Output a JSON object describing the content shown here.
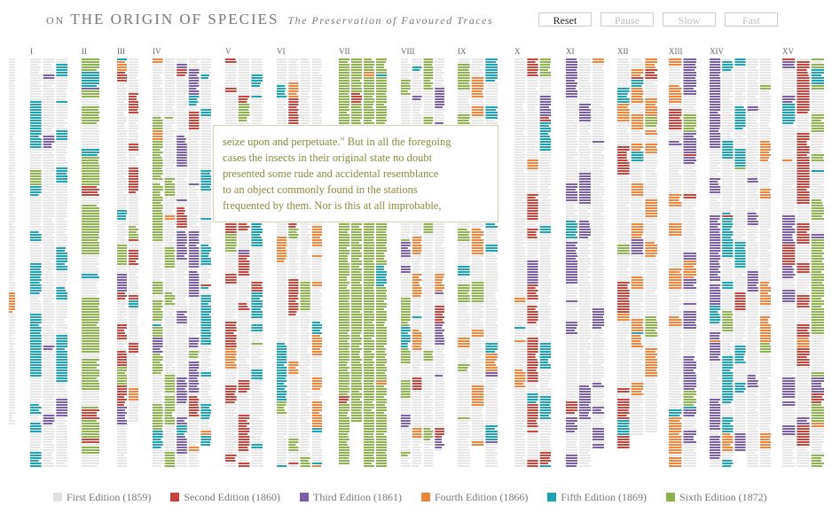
{
  "header": {
    "on": "ON",
    "title": "THE ORIGIN OF SPECIES",
    "subtitle": "The Preservation of Favoured Traces"
  },
  "buttons": [
    "Reset",
    "Pause",
    "Slow",
    "Fast"
  ],
  "chapters": [
    "I",
    "II",
    "III",
    "IV",
    "V",
    "VI",
    "VII",
    "VIII",
    "IX",
    "X",
    "XI",
    "XII",
    "XIII",
    "XIV",
    "XV"
  ],
  "tooltip": [
    "seize upon and perpetuate.\" But in all the foregoing",
    "cases the insects in their original state no doubt",
    "presented some rude and accidental resemblance",
    "to an object commonly found in the stations",
    "frequented by them. Nor is this at all improbable,"
  ],
  "legend": [
    {
      "label": "First Edition (1859)",
      "color": "#e6e6e6"
    },
    {
      "label": "Second Edition (1860)",
      "color": "#c5453c"
    },
    {
      "label": "Third Edition (1861)",
      "color": "#7b5ea7"
    },
    {
      "label": "Fourth Edition (1866)",
      "color": "#f0843a"
    },
    {
      "label": "Fifth Edition (1869)",
      "color": "#1aa2b5"
    },
    {
      "label": "Sixth Edition (1872)",
      "color": "#8db34f"
    }
  ]
}
